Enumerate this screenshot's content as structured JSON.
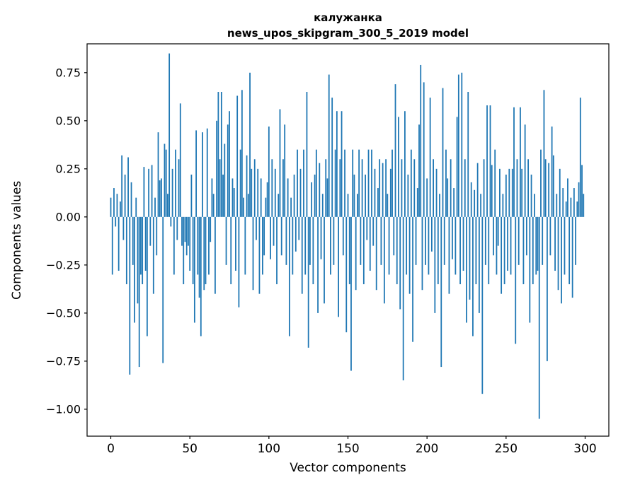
{
  "title_line1": "калужанка",
  "title_line2": "news_upos_skipgram_300_5_2019 model",
  "chart_data": {
    "type": "bar",
    "title": "калужанка — news_upos_skipgram_300_5_2019 model",
    "xlabel": "Vector components",
    "ylabel": "Components values",
    "xlim": [
      -15,
      315
    ],
    "ylim": [
      -1.14,
      0.9
    ],
    "xticks": [
      0,
      50,
      100,
      150,
      200,
      250,
      300
    ],
    "yticks": [
      0.75,
      0.5,
      0.25,
      0.0,
      -0.25,
      -0.5,
      -0.75,
      -1.0
    ],
    "bar_color": "#1f77b4",
    "x_start": 0,
    "values": [
      0.1,
      -0.3,
      0.15,
      -0.05,
      0.12,
      -0.28,
      0.08,
      0.32,
      -0.12,
      0.22,
      -0.35,
      0.31,
      -0.82,
      0.18,
      -0.25,
      -0.55,
      0.1,
      -0.45,
      -0.78,
      -0.3,
      -0.35,
      0.26,
      -0.28,
      -0.62,
      0.25,
      -0.15,
      0.27,
      -0.4,
      0.1,
      -0.2,
      0.44,
      0.19,
      0.2,
      -0.76,
      0.38,
      0.35,
      0.12,
      0.85,
      -0.05,
      0.25,
      -0.3,
      0.35,
      -0.12,
      0.3,
      0.59,
      -0.15,
      -0.35,
      -0.13,
      -0.2,
      -0.15,
      -0.28,
      0.22,
      -0.35,
      -0.55,
      0.45,
      -0.3,
      -0.42,
      -0.62,
      0.44,
      -0.38,
      -0.35,
      0.46,
      -0.3,
      -0.13,
      0.2,
      0.12,
      -0.4,
      0.5,
      0.65,
      0.3,
      0.65,
      0.22,
      0.38,
      -0.25,
      0.48,
      0.55,
      -0.35,
      0.2,
      0.15,
      -0.28,
      0.63,
      -0.47,
      0.35,
      0.66,
      0.1,
      -0.3,
      0.32,
      0.12,
      0.75,
      0.25,
      -0.38,
      0.3,
      -0.12,
      0.25,
      -0.4,
      0.2,
      -0.3,
      -0.2,
      0.1,
      0.18,
      0.47,
      -0.22,
      0.3,
      -0.15,
      0.25,
      -0.35,
      0.12,
      0.56,
      -0.2,
      0.3,
      0.48,
      -0.25,
      0.2,
      -0.62,
      0.1,
      -0.3,
      0.22,
      -0.18,
      0.35,
      -0.12,
      0.25,
      -0.4,
      0.35,
      -0.3,
      0.65,
      -0.68,
      -0.25,
      0.18,
      -0.35,
      0.22,
      0.35,
      -0.5,
      0.28,
      -0.22,
      0.12,
      -0.45,
      0.3,
      0.2,
      0.74,
      -0.3,
      0.62,
      -0.25,
      0.35,
      0.55,
      -0.52,
      0.3,
      0.55,
      -0.2,
      0.35,
      -0.6,
      0.12,
      -0.35,
      -0.8,
      0.35,
      0.22,
      -0.38,
      0.12,
      0.35,
      -0.25,
      0.3,
      -0.35,
      0.22,
      -0.12,
      0.35,
      -0.28,
      0.35,
      -0.15,
      0.25,
      -0.38,
      0.15,
      0.3,
      -0.25,
      0.28,
      -0.45,
      0.3,
      0.12,
      -0.3,
      0.25,
      0.35,
      -0.2,
      0.69,
      -0.35,
      0.52,
      -0.48,
      0.3,
      -0.85,
      0.55,
      -0.3,
      0.22,
      -0.4,
      0.35,
      -0.65,
      0.3,
      -0.25,
      0.15,
      0.48,
      0.79,
      -0.38,
      0.7,
      -0.25,
      0.2,
      -0.3,
      0.62,
      -0.18,
      0.3,
      -0.5,
      0.25,
      -0.35,
      0.12,
      -0.78,
      0.67,
      -0.25,
      0.35,
      0.2,
      -0.4,
      0.3,
      -0.22,
      0.15,
      -0.3,
      0.52,
      0.74,
      -0.35,
      0.75,
      -0.28,
      0.3,
      -0.55,
      0.65,
      -0.43,
      0.18,
      -0.62,
      0.14,
      -0.35,
      0.28,
      -0.5,
      0.12,
      -0.92,
      0.3,
      -0.25,
      0.58,
      -0.35,
      0.58,
      0.27,
      -0.2,
      0.35,
      -0.3,
      -0.15,
      0.25,
      -0.4,
      0.12,
      -0.35,
      0.22,
      -0.28,
      0.25,
      -0.3,
      0.25,
      0.57,
      -0.66,
      0.3,
      -0.25,
      0.57,
      0.25,
      -0.35,
      0.48,
      -0.2,
      0.3,
      -0.55,
      0.22,
      -0.35,
      0.12,
      -0.3,
      -0.28,
      -1.05,
      0.35,
      -0.25,
      0.66,
      0.3,
      -0.75,
      0.28,
      -0.2,
      0.47,
      0.32,
      -0.28,
      0.12,
      -0.38,
      0.25,
      -0.45,
      0.15,
      -0.3,
      0.08,
      0.2,
      -0.35,
      0.1,
      -0.42,
      0.15,
      -0.25,
      0.08,
      0.18,
      0.62,
      0.27,
      0.12
    ]
  }
}
